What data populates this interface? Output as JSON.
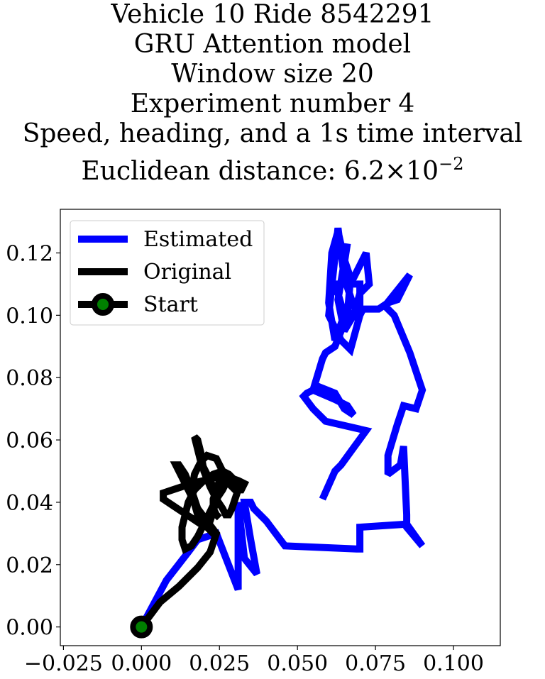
{
  "chart_data": {
    "type": "line",
    "title_lines": [
      "Vehicle 10 Ride 8542291",
      "GRU Attention model",
      "Window size 20",
      "Experiment number 4",
      "Speed, heading, and a 1s time interval"
    ],
    "distance_prefix": "Euclidean distance: ",
    "distance_mantissa": "6.2",
    "distance_times": "×",
    "distance_base": "10",
    "distance_exponent": "−2",
    "xlim": [
      -0.026,
      0.115
    ],
    "ylim": [
      -0.006,
      0.134
    ],
    "x_ticks": [
      {
        "value": -0.025,
        "label": "−0.025"
      },
      {
        "value": 0.0,
        "label": "0.000"
      },
      {
        "value": 0.025,
        "label": "0.025"
      },
      {
        "value": 0.05,
        "label": "0.050"
      },
      {
        "value": 0.075,
        "label": "0.075"
      },
      {
        "value": 0.1,
        "label": "0.100"
      }
    ],
    "y_ticks": [
      {
        "value": 0.0,
        "label": "0.00"
      },
      {
        "value": 0.02,
        "label": "0.02"
      },
      {
        "value": 0.04,
        "label": "0.04"
      },
      {
        "value": 0.06,
        "label": "0.06"
      },
      {
        "value": 0.08,
        "label": "0.08"
      },
      {
        "value": 0.1,
        "label": "0.10"
      },
      {
        "value": 0.12,
        "label": "0.12"
      }
    ],
    "legend_position": "upper left",
    "grid": false,
    "series": [
      {
        "name": "Estimated",
        "color": "#0000ff",
        "x": [
          0.0,
          0.008,
          0.015,
          0.018,
          0.024,
          0.031,
          0.031,
          0.033,
          0.037,
          0.035,
          0.033,
          0.035,
          0.036,
          0.04,
          0.046,
          0.069,
          0.07,
          0.07,
          0.085,
          0.09,
          0.085,
          0.085,
          0.084,
          0.083,
          0.079,
          0.079,
          0.082,
          0.084,
          0.088,
          0.09,
          0.088,
          0.086,
          0.081,
          0.078,
          0.086,
          0.082,
          0.079,
          0.076,
          0.071,
          0.07,
          0.068,
          0.065,
          0.063,
          0.06,
          0.064,
          0.067,
          0.07,
          0.07,
          0.066,
          0.068,
          0.072,
          0.073,
          0.07,
          0.068,
          0.065,
          0.063,
          0.066,
          0.064,
          0.06,
          0.063,
          0.065,
          0.062,
          0.06,
          0.061,
          0.063,
          0.065,
          0.067,
          0.066,
          0.062,
          0.059,
          0.058,
          0.055,
          0.062,
          0.066,
          0.068,
          0.065,
          0.062,
          0.057,
          0.053,
          0.052,
          0.055,
          0.059,
          0.072,
          0.064,
          0.062,
          0.058
        ],
        "y": [
          0.0,
          0.015,
          0.024,
          0.028,
          0.03,
          0.012,
          0.04,
          0.022,
          0.017,
          0.028,
          0.04,
          0.04,
          0.038,
          0.034,
          0.026,
          0.025,
          0.025,
          0.032,
          0.033,
          0.026,
          0.032,
          0.036,
          0.058,
          0.052,
          0.049,
          0.055,
          0.065,
          0.071,
          0.07,
          0.076,
          0.082,
          0.088,
          0.1,
          0.103,
          0.113,
          0.105,
          0.104,
          0.102,
          0.102,
          0.1,
          0.103,
          0.112,
          0.128,
          0.1,
          0.092,
          0.089,
          0.1,
          0.11,
          0.11,
          0.112,
          0.12,
          0.11,
          0.107,
          0.1,
          0.095,
          0.105,
          0.123,
          0.11,
          0.11,
          0.107,
          0.1,
          0.092,
          0.104,
          0.12,
          0.127,
          0.118,
          0.112,
          0.1,
          0.09,
          0.088,
          0.086,
          0.076,
          0.073,
          0.071,
          0.068,
          0.07,
          0.075,
          0.077,
          0.075,
          0.074,
          0.07,
          0.066,
          0.063,
          0.052,
          0.05,
          0.041
        ]
      },
      {
        "name": "Original",
        "color": "#000000",
        "x": [
          0.0,
          0.006,
          0.012,
          0.018,
          0.022,
          0.024,
          0.018,
          0.015,
          0.013,
          0.012,
          0.011,
          0.012,
          0.014,
          0.016,
          0.018,
          0.02,
          0.023,
          0.024,
          0.022,
          0.018,
          0.016,
          0.017,
          0.019,
          0.021,
          0.024,
          0.026,
          0.028,
          0.03,
          0.032,
          0.033,
          0.031,
          0.028,
          0.024,
          0.02,
          0.016,
          0.013,
          0.01,
          0.007,
          0.007,
          0.01,
          0.013,
          0.016,
          0.019,
          0.021,
          0.022,
          0.023,
          0.024,
          0.023,
          0.021,
          0.019,
          0.018,
          0.017,
          0.018,
          0.019,
          0.02,
          0.022,
          0.024,
          0.026,
          0.027,
          0.028,
          0.029,
          0.03,
          0.031,
          0.03,
          0.028,
          0.026,
          0.023,
          0.02,
          0.017,
          0.015,
          0.014,
          0.013,
          0.013,
          0.014,
          0.016,
          0.018,
          0.02,
          0.022,
          0.024,
          0.026,
          0.027,
          0.027,
          0.026,
          0.025,
          0.024,
          0.023,
          0.023,
          0.024,
          0.025
        ],
        "y": [
          0.0,
          0.008,
          0.013,
          0.019,
          0.024,
          0.03,
          0.038,
          0.044,
          0.048,
          0.05,
          0.052,
          0.052,
          0.049,
          0.044,
          0.038,
          0.033,
          0.03,
          0.029,
          0.031,
          0.036,
          0.043,
          0.049,
          0.053,
          0.055,
          0.054,
          0.05,
          0.046,
          0.044,
          0.044,
          0.046,
          0.047,
          0.048,
          0.048,
          0.047,
          0.046,
          0.045,
          0.044,
          0.043,
          0.041,
          0.039,
          0.037,
          0.035,
          0.033,
          0.032,
          0.034,
          0.037,
          0.041,
          0.045,
          0.049,
          0.053,
          0.057,
          0.061,
          0.06,
          0.056,
          0.05,
          0.045,
          0.041,
          0.038,
          0.036,
          0.036,
          0.038,
          0.041,
          0.044,
          0.047,
          0.049,
          0.05,
          0.049,
          0.047,
          0.044,
          0.04,
          0.036,
          0.032,
          0.028,
          0.025,
          0.026,
          0.029,
          0.033,
          0.037,
          0.041,
          0.044,
          0.046,
          0.048,
          0.049,
          0.047,
          0.044,
          0.041,
          0.038,
          0.036,
          0.035
        ]
      },
      {
        "name": "Start",
        "color": "#000000",
        "marker_face": "#008000",
        "x": [
          0.0
        ],
        "y": [
          0.0
        ]
      }
    ]
  }
}
